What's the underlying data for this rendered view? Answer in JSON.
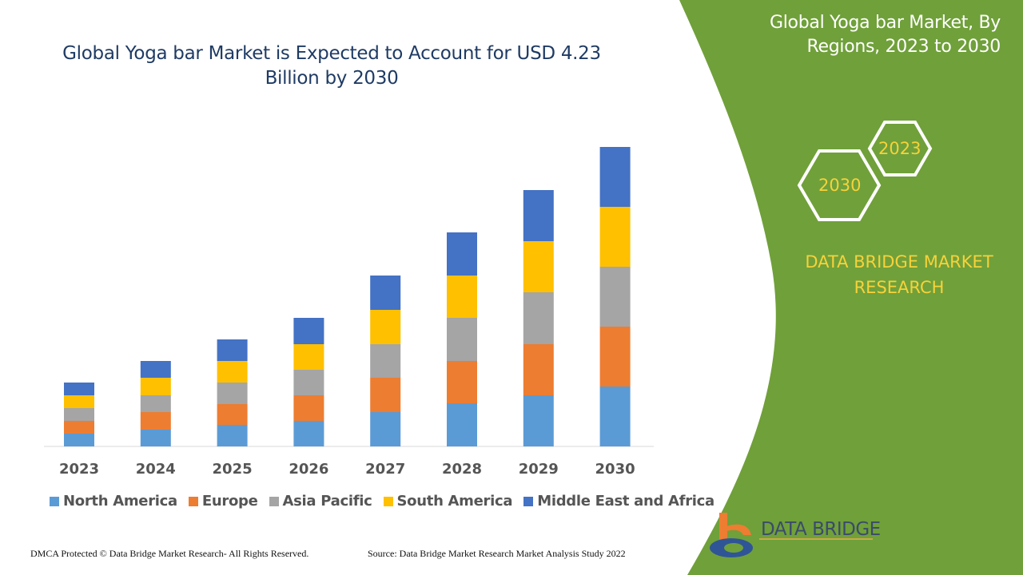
{
  "title": "Global Yoga bar Market is Expected to Account for USD 4.23 Billion by 2030",
  "side_panel": {
    "title": "Global Yoga bar Market, By Regions, 2023 to 2030",
    "hex_labels": [
      "2023",
      "2030"
    ],
    "brand": "DATA BRIDGE MARKET RESEARCH",
    "logo_text": "DATA BRIDGE",
    "panel_color": "#70a03a"
  },
  "footer": {
    "left": "DMCA Protected © Data Bridge Market Research- All Rights Reserved.",
    "right": "Source: Data Bridge Market Research Market Analysis Study 2022"
  },
  "chart_data": {
    "type": "bar",
    "stacked": true,
    "title": "Global Yoga bar Market is Expected to Account for USD 4.23 Billion by 2030",
    "categories": [
      "2023",
      "2024",
      "2025",
      "2026",
      "2027",
      "2028",
      "2029",
      "2030"
    ],
    "series": [
      {
        "name": "North America",
        "color": "#5b9bd5",
        "values": [
          16,
          21,
          27,
          32,
          43,
          54,
          64,
          75
        ]
      },
      {
        "name": "Europe",
        "color": "#ed7d31",
        "values": [
          16,
          22,
          26,
          32,
          43,
          53,
          64,
          75
        ]
      },
      {
        "name": "Asia Pacific",
        "color": "#a5a5a5",
        "values": [
          16,
          21,
          27,
          32,
          42,
          54,
          65,
          75
        ]
      },
      {
        "name": "South America",
        "color": "#ffc000",
        "values": [
          16,
          22,
          27,
          32,
          43,
          53,
          64,
          75
        ]
      },
      {
        "name": "Middle East and Africa",
        "color": "#4472c4",
        "values": [
          16,
          21,
          27,
          33,
          43,
          54,
          64,
          75
        ]
      }
    ],
    "y_axis_shown": false,
    "grid": false,
    "legend": "bottom"
  }
}
